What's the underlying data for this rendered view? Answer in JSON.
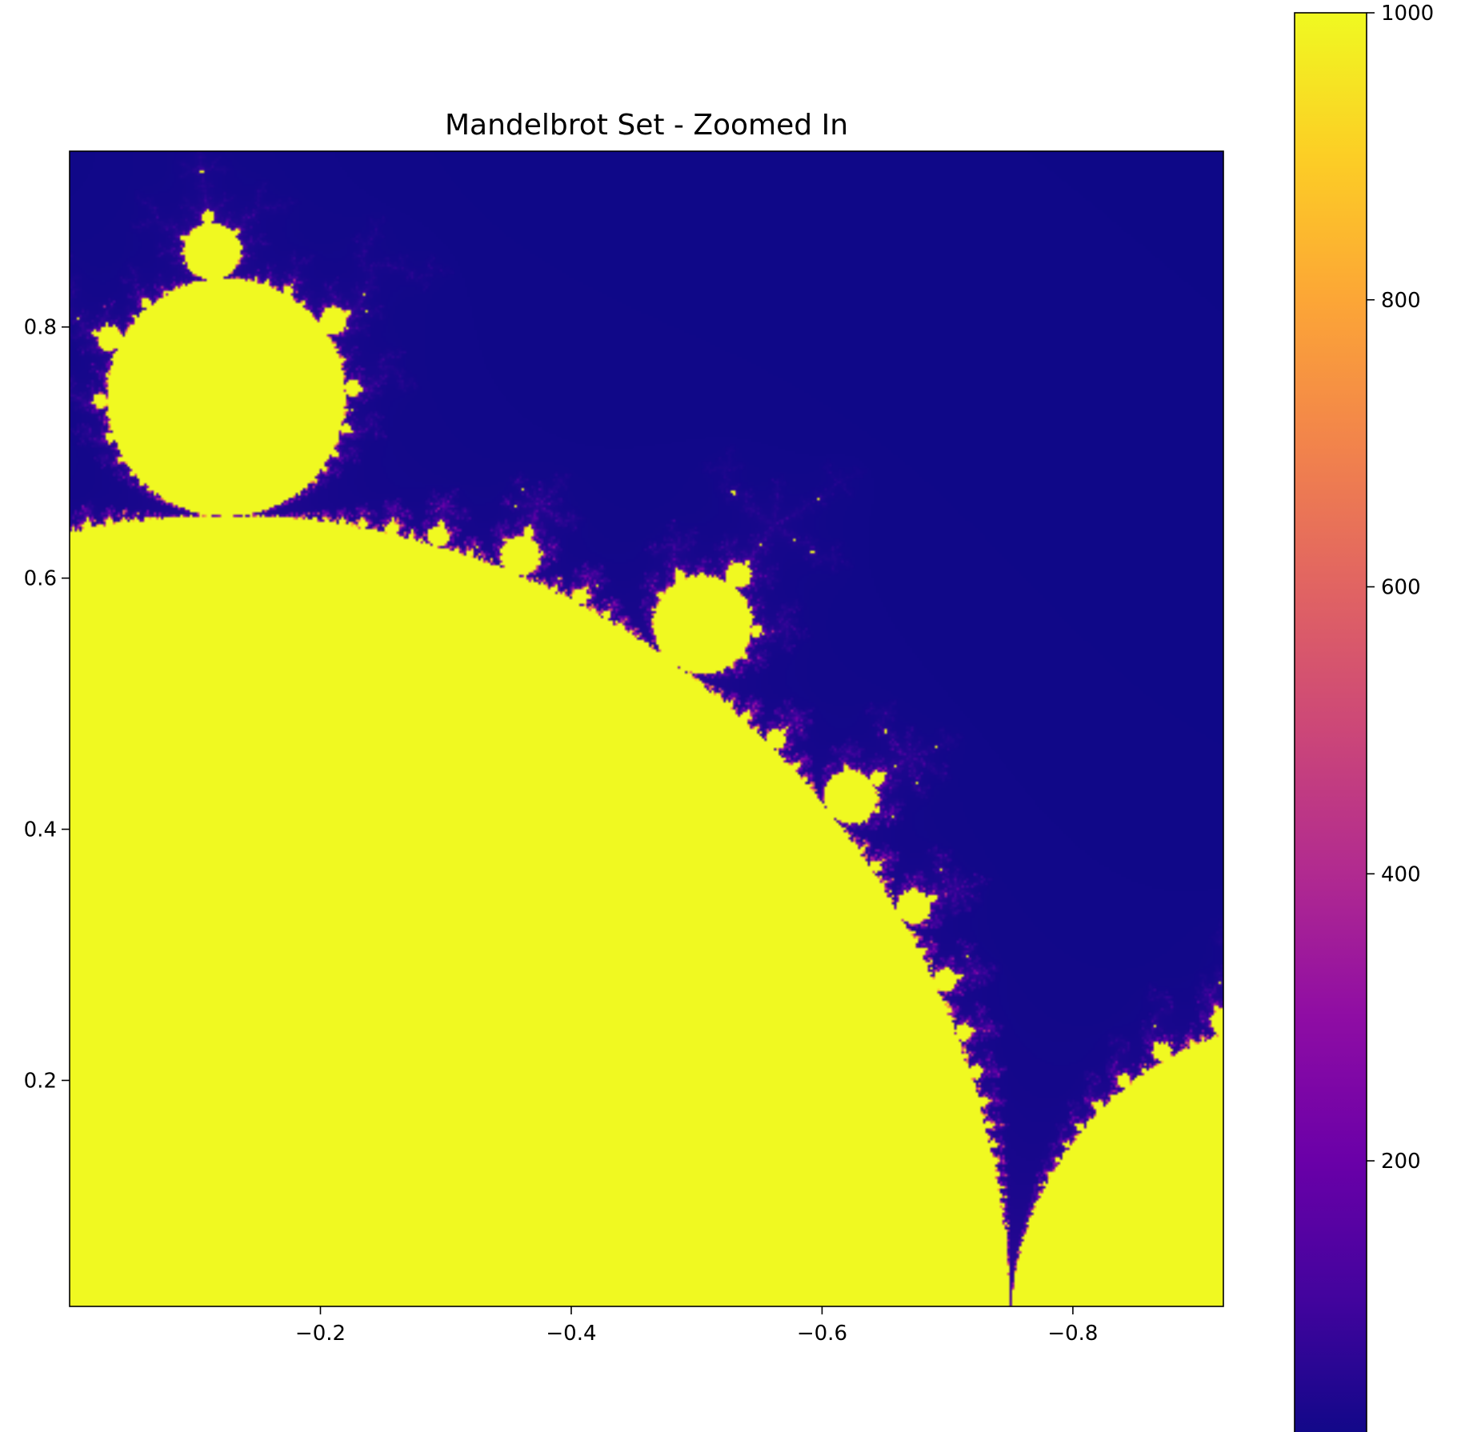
{
  "chart_data": {
    "type": "heatmap",
    "title": "Mandelbrot Set - Zoomed In",
    "xlabel": "",
    "ylabel": "",
    "x_direction": "decreasing to the right",
    "xlim": [
      0.0,
      -0.92
    ],
    "ylim": [
      0.02,
      0.94
    ],
    "x_ticks": [
      {
        "value": -0.2,
        "label": "−0.2"
      },
      {
        "value": -0.4,
        "label": "−0.4"
      },
      {
        "value": -0.6,
        "label": "−0.6"
      },
      {
        "value": -0.8,
        "label": "−0.8"
      }
    ],
    "y_ticks": [
      {
        "value": 0.2,
        "label": "0.2"
      },
      {
        "value": 0.4,
        "label": "0.4"
      },
      {
        "value": 0.6,
        "label": "0.6"
      },
      {
        "value": 0.8,
        "label": "0.8"
      }
    ],
    "colorbar": {
      "colormap": "plasma",
      "range": [
        1,
        1000
      ],
      "ticks": [
        {
          "value": 200,
          "label": "200"
        },
        {
          "value": 400,
          "label": "400"
        },
        {
          "value": 600,
          "label": "600"
        },
        {
          "value": 800,
          "label": "800"
        },
        {
          "value": 1000,
          "label": "1000"
        }
      ]
    },
    "grid": false,
    "legend": "none",
    "colors": {
      "inside_set": "#f0f921",
      "escaped_fast": "#0d0887"
    }
  }
}
